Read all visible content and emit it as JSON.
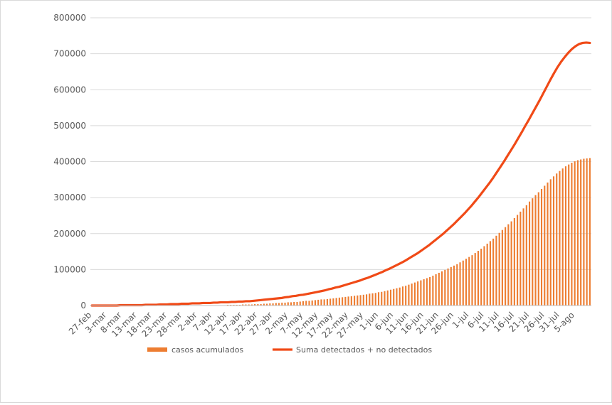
{
  "chart_data": {
    "type": "bar",
    "title": "",
    "xlabel": "",
    "ylabel": "",
    "ylim": [
      0,
      800000
    ],
    "yticks": [
      "0",
      "100000",
      "200000",
      "300000",
      "400000",
      "500000",
      "600000",
      "700000",
      "800000"
    ],
    "grid": true,
    "legend_position": "bottom",
    "x_tick_labels": [
      "27-feb",
      "3-mar",
      "8-mar",
      "13-mar",
      "18-mar",
      "23-mar",
      "28-mar",
      "2-abr",
      "7-abr",
      "12-abr",
      "17-abr",
      "22-abr",
      "27-abr",
      "2-may",
      "7-may",
      "12-may",
      "17-may",
      "22-may",
      "27-may",
      "1-jun",
      "6-jun",
      "11-jun",
      "16-jun",
      "21-jun",
      "26-jun",
      "1-jul",
      "6-jul",
      "11-jul",
      "16-jul",
      "21-jul",
      "26-jul",
      "31-jul",
      "5-ago"
    ],
    "series": [
      {
        "name": "casos acumulados",
        "kind": "bar",
        "color": "#ed7d31",
        "values": [
          0,
          0,
          0,
          0,
          1,
          1,
          2,
          3,
          4,
          5,
          6,
          7,
          9,
          11,
          13,
          15,
          18,
          21,
          24,
          28,
          32,
          36,
          40,
          45,
          50,
          55,
          61,
          67,
          73,
          80
        ]
      },
      {
        "name": "Suma detectados + no detectados",
        "kind": "line",
        "color": "#f04a17",
        "values": [
          0,
          0,
          0,
          0,
          1,
          2,
          3,
          5,
          7,
          9,
          11,
          13,
          15,
          18,
          21,
          25,
          29,
          33,
          37,
          42,
          47,
          52,
          58,
          64,
          70,
          77,
          84,
          91,
          99,
          107
        ]
      }
    ],
    "category_count": 166,
    "series_values_unit_note": "values x 1000",
    "bar_values_k": [
      0,
      0,
      0,
      0,
      0,
      0,
      0,
      0,
      0,
      0,
      0,
      0,
      0,
      0,
      0,
      0,
      0,
      0,
      0,
      0,
      0,
      0,
      0,
      0,
      0,
      0,
      0,
      0,
      0,
      0,
      0,
      0,
      1,
      1,
      1,
      1,
      1,
      1,
      1,
      1,
      1,
      1,
      1,
      1,
      1,
      2,
      2,
      2,
      2,
      2,
      3,
      3,
      3,
      3,
      4,
      4,
      4,
      5,
      5,
      6,
      6,
      7,
      7,
      8,
      8,
      9,
      9,
      10,
      10,
      11,
      12,
      13,
      13,
      14,
      15,
      16,
      17,
      17,
      18,
      19,
      20,
      21,
      22,
      23,
      24,
      25,
      26,
      27,
      28,
      29,
      30,
      31,
      33,
      34,
      35,
      37,
      38,
      40,
      42,
      44,
      46,
      48,
      50,
      53,
      55,
      58,
      61,
      64,
      67,
      70,
      73,
      76,
      79,
      83,
      87,
      91,
      95,
      99,
      103,
      107,
      111,
      115,
      120,
      125,
      130,
      135,
      140,
      146,
      152,
      158,
      165,
      172,
      179,
      186,
      194,
      202,
      210,
      218,
      226,
      234,
      243,
      252,
      261,
      270,
      279,
      289,
      298,
      307,
      315,
      324,
      333,
      342,
      351,
      359,
      367,
      374,
      381,
      387,
      392,
      397,
      401,
      404,
      406,
      408,
      409,
      410
    ],
    "line_values_k": [
      0,
      0,
      0,
      0,
      0,
      0,
      0,
      0,
      1,
      1,
      1,
      1,
      1,
      1,
      1,
      2,
      2,
      2,
      2,
      3,
      3,
      3,
      4,
      4,
      4,
      5,
      5,
      5,
      6,
      6,
      6,
      7,
      7,
      7,
      8,
      8,
      9,
      9,
      9,
      10,
      10,
      11,
      11,
      12,
      12,
      13,
      14,
      15,
      16,
      17,
      18,
      19,
      20,
      21,
      23,
      24,
      26,
      27,
      29,
      30,
      32,
      34,
      36,
      38,
      40,
      42,
      45,
      47,
      50,
      52,
      55,
      58,
      61,
      64,
      67,
      70,
      74,
      77,
      81,
      85,
      89,
      93,
      98,
      102,
      107,
      112,
      117,
      122,
      128,
      134,
      140,
      146,
      153,
      160,
      167,
      175,
      183,
      191,
      199,
      208,
      217,
      226,
      236,
      246,
      256,
      267,
      278,
      290,
      302,
      315,
      328,
      341,
      355,
      370,
      385,
      400,
      416,
      432,
      448,
      465,
      482,
      500,
      517,
      535,
      553,
      571,
      590,
      609,
      628,
      646,
      663,
      678,
      691,
      703,
      713,
      721,
      727,
      730,
      731,
      730
    ],
    "bar_line_notes": ""
  }
}
